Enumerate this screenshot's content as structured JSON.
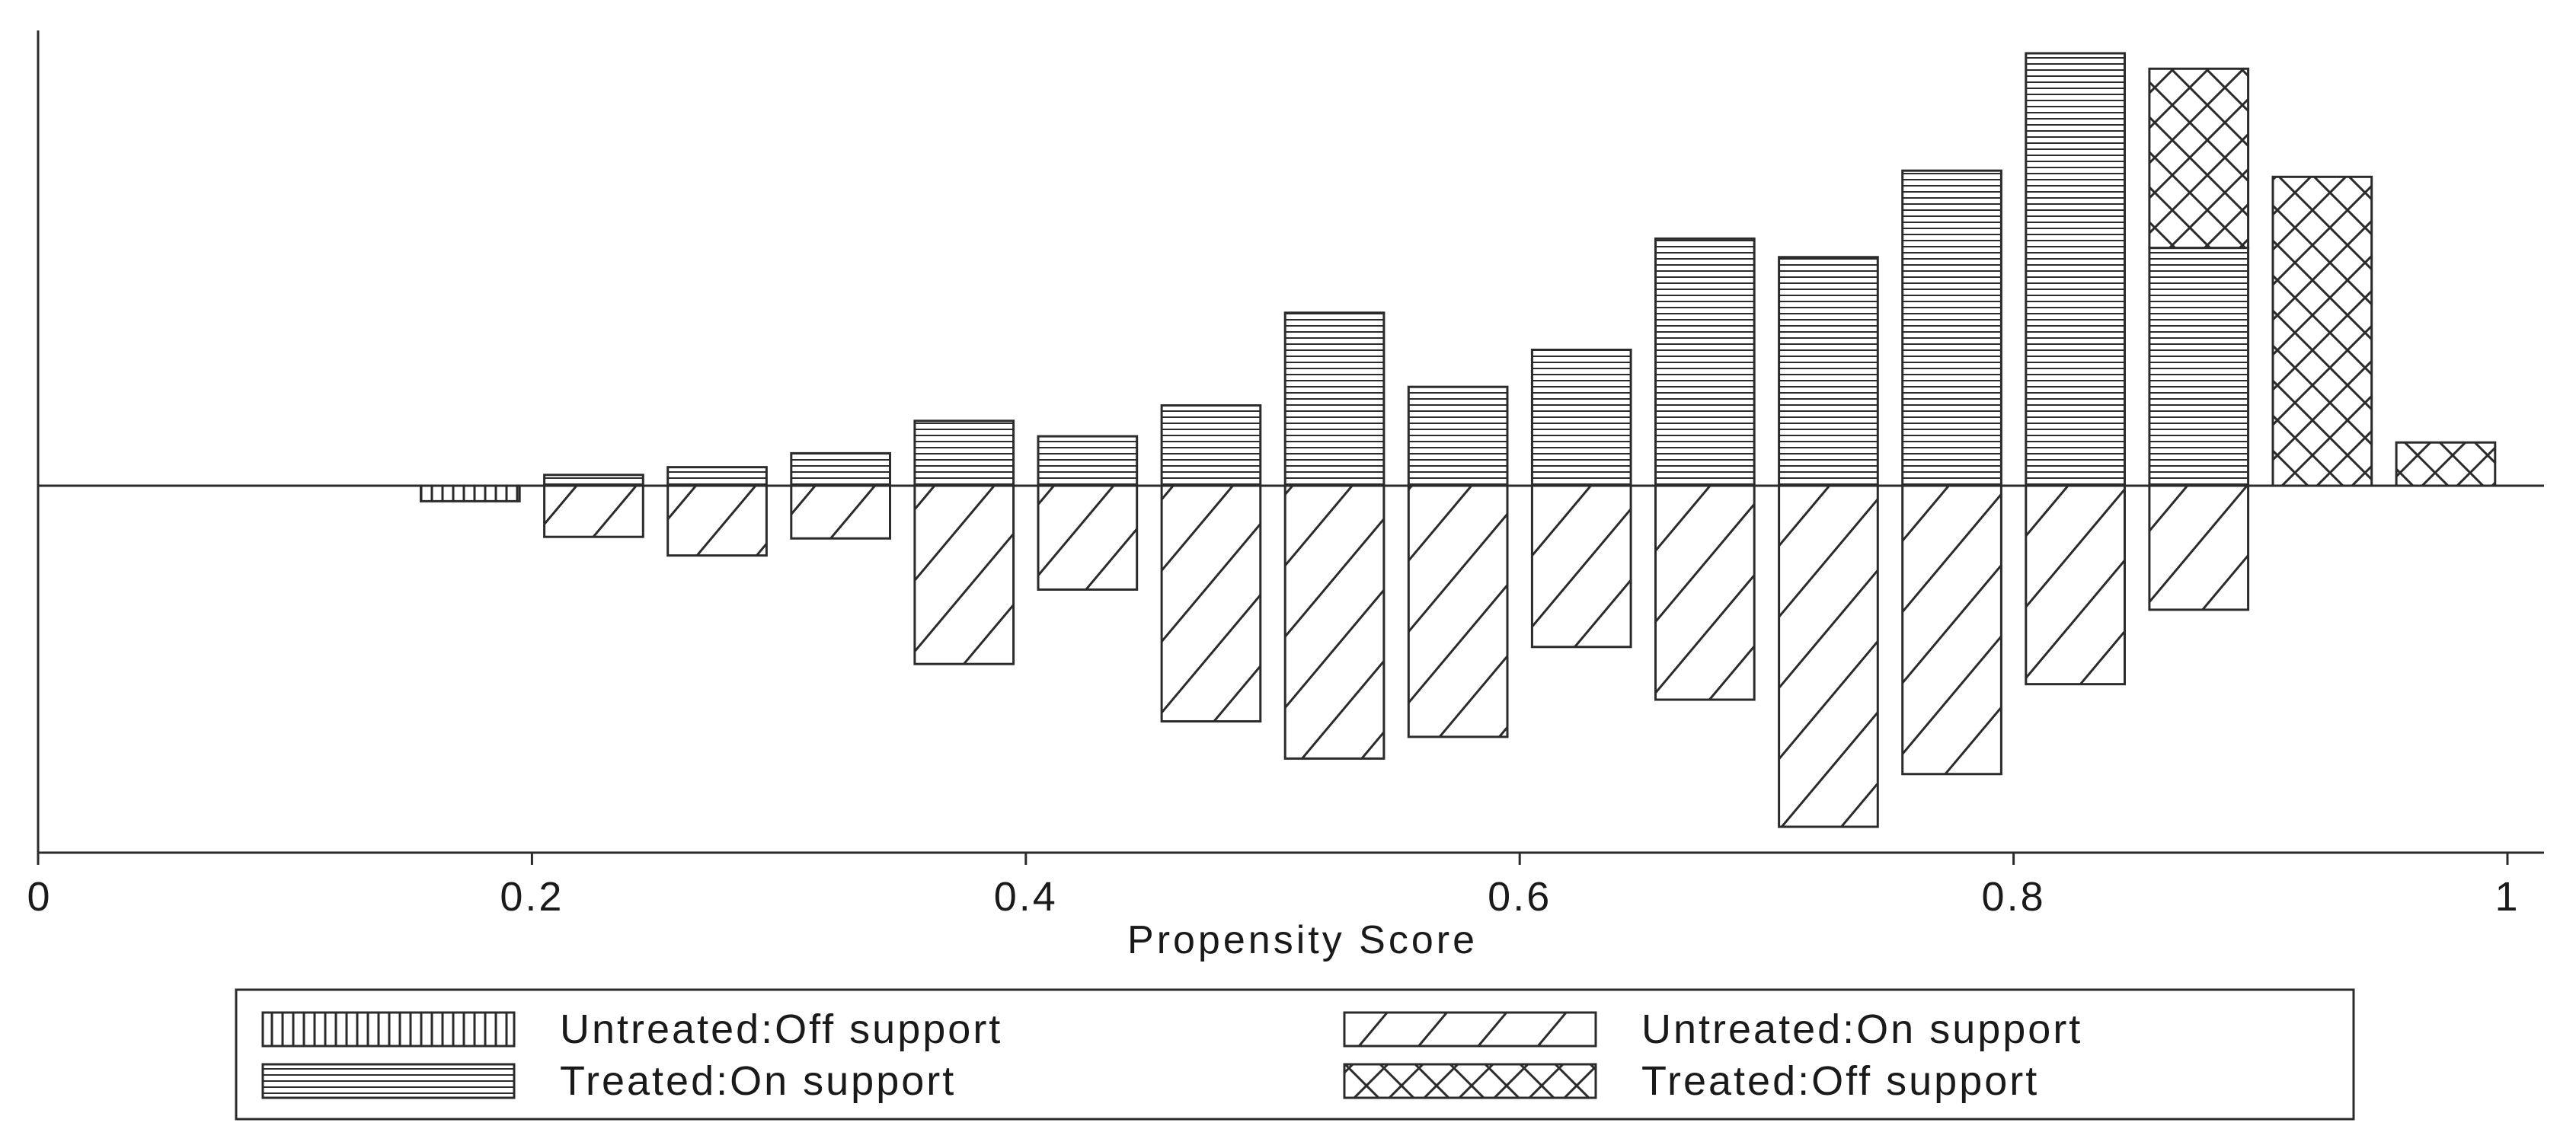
{
  "chart_data": {
    "type": "bar",
    "subtype": "mirrored-histogram",
    "xlabel": "Propensity Score",
    "ylabel": "",
    "x_ticks": [
      "0",
      "0.2",
      "0.4",
      "0.6",
      "0.8",
      "1"
    ],
    "x_tick_values": [
      0.0,
      0.2,
      0.4,
      0.6,
      0.8,
      1.0
    ],
    "xlim": [
      0.0,
      1.0
    ],
    "y_axis_shown": true,
    "y_ticks_shown": false,
    "ylim": [
      -120,
      140
    ],
    "grid": false,
    "bin_centers": [
      0.175,
      0.225,
      0.275,
      0.325,
      0.375,
      0.425,
      0.475,
      0.525,
      0.575,
      0.625,
      0.675,
      0.725,
      0.775,
      0.825,
      0.875,
      0.925,
      0.975
    ],
    "bin_width": 0.04,
    "series": [
      {
        "name": "Treated:On support",
        "direction": "up",
        "pattern": "horizontal-lines",
        "values": [
          0,
          3.5,
          6,
          10.5,
          21,
          16,
          26,
          56,
          32,
          44,
          80,
          74,
          102,
          140,
          77,
          0,
          0
        ]
      },
      {
        "name": "Treated:Off support",
        "direction": "up",
        "pattern": "cross-hatch",
        "values": [
          0,
          0,
          0,
          0,
          0,
          0,
          0,
          0,
          0,
          0,
          0,
          0,
          0,
          0,
          58,
          100,
          14
        ]
      },
      {
        "name": "Untreated:Off support",
        "direction": "down",
        "pattern": "vertical-lines",
        "values": [
          5,
          0,
          0,
          0,
          0,
          0,
          0,
          0,
          0,
          0,
          0,
          0,
          0,
          0,
          0,
          0,
          0
        ]
      },
      {
        "name": "Untreated:On support",
        "direction": "down",
        "pattern": "diagonal-lines",
        "values": [
          0,
          16.5,
          22.5,
          17,
          57.5,
          33.5,
          76,
          88,
          81,
          52,
          69,
          110,
          93,
          64,
          40,
          0,
          0
        ]
      }
    ],
    "legend": {
      "position": "bottom",
      "items": [
        {
          "label": "Untreated:Off support",
          "pattern": "vertical-lines"
        },
        {
          "label": "Untreated:On support",
          "pattern": "diagonal-lines"
        },
        {
          "label": "Treated:On support",
          "pattern": "horizontal-lines"
        },
        {
          "label": "Treated:Off support",
          "pattern": "cross-hatch"
        }
      ]
    }
  }
}
